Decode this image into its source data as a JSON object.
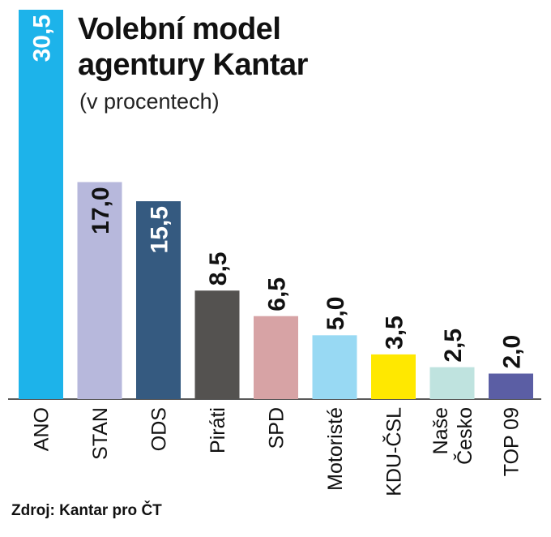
{
  "title_line1": "Volební model",
  "title_line2": "agentury Kantar",
  "subtitle": "(v procentech)",
  "source": "Zdroj: Kantar pro ČT",
  "chart_data": {
    "type": "bar",
    "title": "Volební model agentury Kantar",
    "subtitle": "(v procentech)",
    "categories": [
      "ANO",
      "STAN",
      "ODS",
      "Piráti",
      "SPD",
      "Motoristé",
      "KDU-ČSL",
      [
        "Naše",
        "Česko"
      ],
      "TOP 09"
    ],
    "values": [
      30.5,
      17.0,
      15.5,
      8.5,
      6.5,
      5.0,
      3.5,
      2.5,
      2.0
    ],
    "value_labels": [
      "30,5",
      "17,0",
      "15,5",
      "8,5",
      "6,5",
      "5,0",
      "3,5",
      "2,5",
      "2,0"
    ],
    "colors": [
      "#1db3ea",
      "#b7b8dc",
      "#355a80",
      "#545250",
      "#d7a3a5",
      "#98d9f3",
      "#ffe800",
      "#bfe3df",
      "#5b5ea4"
    ],
    "label_inside": [
      true,
      true,
      true,
      false,
      false,
      false,
      false,
      false,
      false
    ],
    "label_color": [
      "#ffffff",
      "#111111",
      "#ffffff",
      "#111111",
      "#111111",
      "#111111",
      "#111111",
      "#111111",
      "#111111"
    ],
    "ylim": [
      0,
      30.5
    ],
    "grid": false,
    "legend": "none"
  }
}
